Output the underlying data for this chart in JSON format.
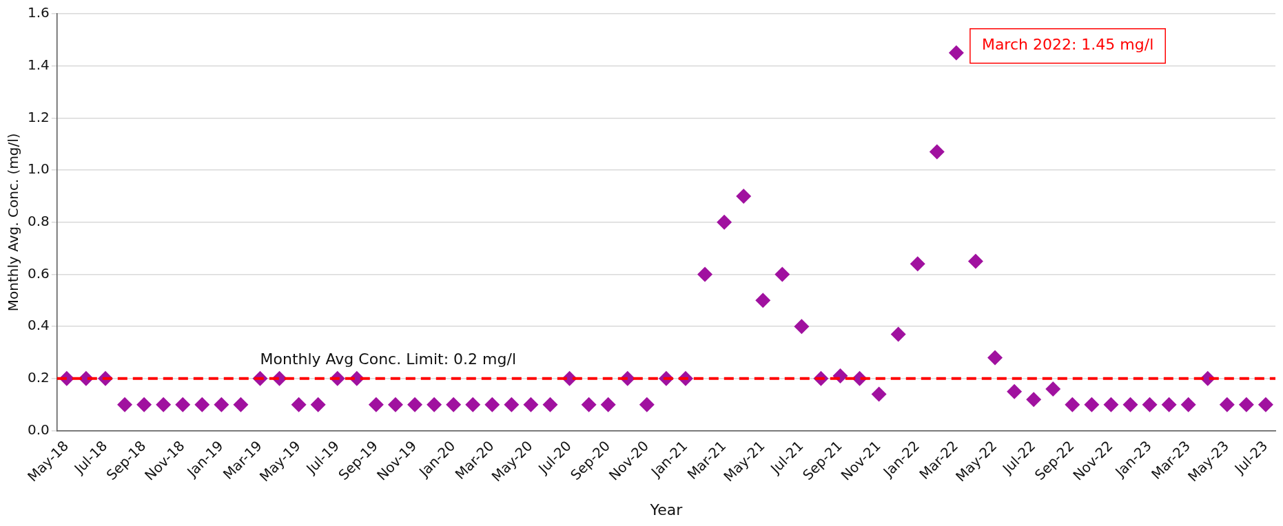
{
  "chart_data": {
    "type": "scatter",
    "xlabel": "Year",
    "ylabel": "Monthly Avg. Conc. (mg/l)",
    "categories": [
      "May-18",
      null,
      "Jul-18",
      null,
      "Sep-18",
      null,
      "Nov-18",
      null,
      "Jan-19",
      null,
      "Mar-19",
      null,
      "May-19",
      null,
      "Jul-19",
      null,
      "Sep-19",
      null,
      "Nov-19",
      null,
      "Jan-20",
      null,
      "Mar-20",
      null,
      "May-20",
      null,
      "Jul-20",
      null,
      "Sep-20",
      null,
      "Nov-20",
      null,
      "Jan-21",
      null,
      "Mar-21",
      null,
      "May-21",
      null,
      "Jul-21",
      null,
      "Sep-21",
      null,
      "Nov-21",
      null,
      "Jan-22",
      null,
      "Mar-22",
      null,
      "May-22",
      null,
      "Jul-22",
      null,
      "Sep-22",
      null,
      "Nov-22",
      null,
      "Jan-23",
      null,
      "Mar-23",
      null,
      "May-23",
      null,
      "Jul-23"
    ],
    "series": [
      {
        "color": "#a0119f",
        "values": [
          0.2,
          0.2,
          0.2,
          0.1,
          0.1,
          0.1,
          0.1,
          0.1,
          0.1,
          0.1,
          0.2,
          0.2,
          0.1,
          0.1,
          0.2,
          0.2,
          0.1,
          0.1,
          0.1,
          0.1,
          0.1,
          0.1,
          0.1,
          0.1,
          0.1,
          0.1,
          0.2,
          0.1,
          0.1,
          0.2,
          0.1,
          0.2,
          0.2,
          0.6,
          0.8,
          0.9,
          0.5,
          0.6,
          0.4,
          0.2,
          0.21,
          0.2,
          0.14,
          0.37,
          0.64,
          1.07,
          1.45,
          0.65,
          0.28,
          0.15,
          0.12,
          0.16,
          0.1,
          0.1,
          0.1,
          0.1,
          0.1,
          0.1,
          0.1,
          0.2,
          0.1,
          0.1,
          0.1
        ]
      }
    ],
    "ylim": [
      0,
      1.6
    ],
    "yticks": [
      {
        "value": 0,
        "label": "0.0"
      },
      {
        "value": 0.2,
        "label": "0.2"
      },
      {
        "value": 0.4,
        "label": "0.4"
      },
      {
        "value": 0.6,
        "label": "0.6"
      },
      {
        "value": 0.8,
        "label": "0.8"
      },
      {
        "value": 1.0,
        "label": "1.0"
      },
      {
        "value": 1.2,
        "label": "1.2"
      },
      {
        "value": 1.4,
        "label": "1.4"
      },
      {
        "value": 1.6,
        "label": "1.6"
      }
    ],
    "grid": "y",
    "legend": false,
    "marker": "diamond",
    "ref_lines": [
      {
        "axis": "y",
        "value": 0.2,
        "label": "Monthly Avg Conc. Limit: 0.2 mg/l",
        "color": "#ff0000",
        "line_style": "dashed"
      }
    ],
    "annotations": [
      {
        "text": "March 2022: 1.45 mg/l",
        "x": "Mar-22",
        "y": 1.45
      }
    ]
  }
}
